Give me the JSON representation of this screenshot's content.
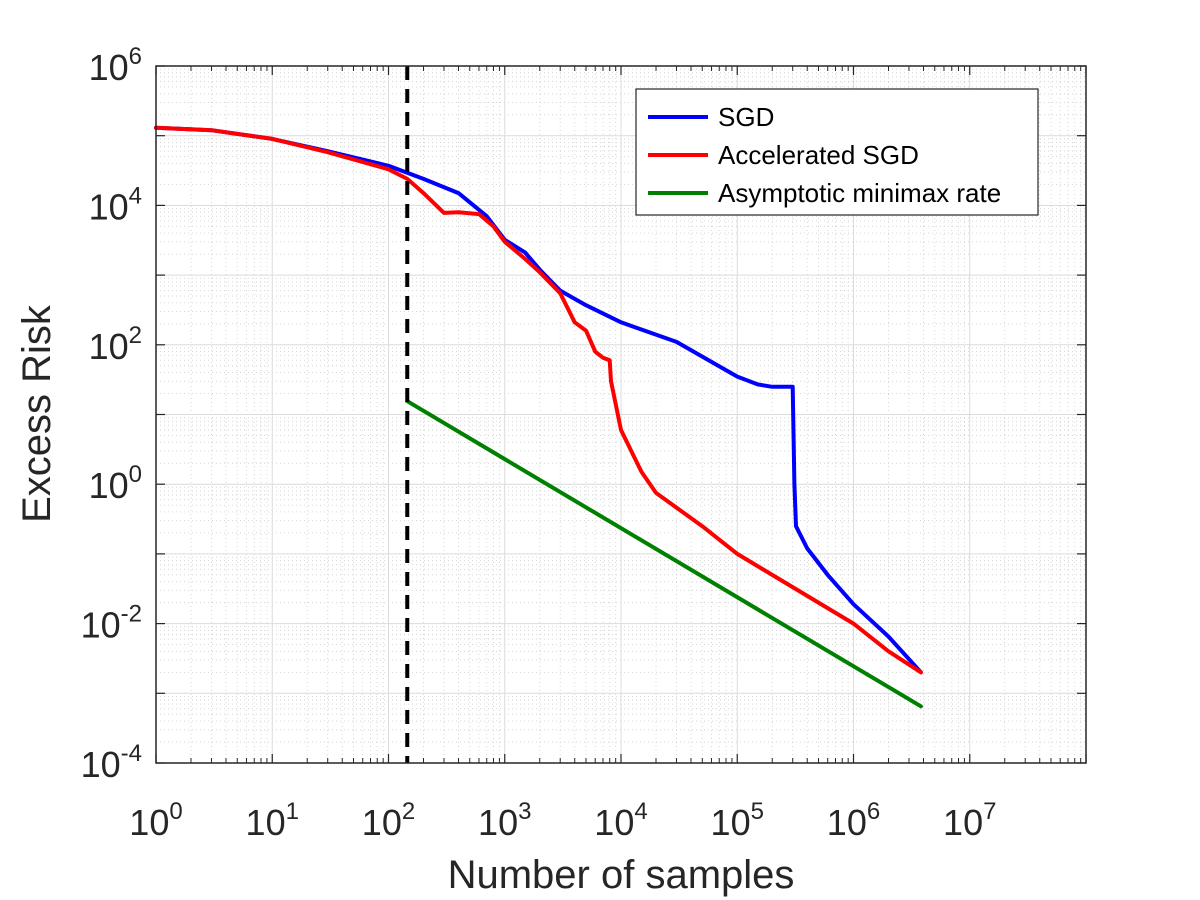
{
  "chart_data": {
    "type": "line",
    "title": "",
    "xlabel": "Number of samples",
    "ylabel": "Excess Risk",
    "xscale": "log",
    "yscale": "log",
    "xlim": [
      1,
      100000000
    ],
    "ylim": [
      0.0001,
      1000000
    ],
    "x_ticks": [
      {
        "base": "10",
        "exp": "0",
        "value": 1
      },
      {
        "base": "10",
        "exp": "1",
        "value": 10
      },
      {
        "base": "10",
        "exp": "2",
        "value": 100
      },
      {
        "base": "10",
        "exp": "3",
        "value": 1000
      },
      {
        "base": "10",
        "exp": "4",
        "value": 10000
      },
      {
        "base": "10",
        "exp": "5",
        "value": 100000
      },
      {
        "base": "10",
        "exp": "6",
        "value": 1000000
      },
      {
        "base": "10",
        "exp": "7",
        "value": 10000000
      }
    ],
    "y_ticks": [
      {
        "base": "10",
        "exp": "-4",
        "value": 0.0001
      },
      {
        "base": "10",
        "exp": "-2",
        "value": 0.01
      },
      {
        "base": "10",
        "exp": "0",
        "value": 1
      },
      {
        "base": "10",
        "exp": "2",
        "value": 100
      },
      {
        "base": "10",
        "exp": "4",
        "value": 10000
      },
      {
        "base": "10",
        "exp": "6",
        "value": 1000000
      }
    ],
    "grid": true,
    "legend_position": "top-right",
    "vertical_line": {
      "x": 145,
      "style": "dashed",
      "color": "#000000"
    },
    "series": [
      {
        "name": "SGD",
        "color": "#0000ff",
        "points": [
          [
            1,
            130000
          ],
          [
            3,
            120000
          ],
          [
            10,
            90000
          ],
          [
            30,
            60000
          ],
          [
            100,
            37000
          ],
          [
            200,
            24000
          ],
          [
            400,
            15000
          ],
          [
            700,
            7000
          ],
          [
            1000,
            3200
          ],
          [
            1500,
            2100
          ],
          [
            2000,
            1200
          ],
          [
            3000,
            600
          ],
          [
            5000,
            370
          ],
          [
            10000,
            210
          ],
          [
            30000,
            110
          ],
          [
            100000,
            35.0
          ],
          [
            150000,
            27
          ],
          [
            200000,
            25
          ],
          [
            300000,
            25
          ],
          [
            310000,
            1.0
          ],
          [
            320000,
            0.25
          ],
          [
            400000,
            0.12
          ],
          [
            600000,
            0.05
          ],
          [
            1000000,
            0.019
          ],
          [
            2000000,
            0.0065
          ],
          [
            3800000,
            0.002
          ]
        ]
      },
      {
        "name": "Accelerated SGD",
        "color": "#ff0000",
        "points": [
          [
            1,
            130000
          ],
          [
            3,
            120000
          ],
          [
            10,
            90000
          ],
          [
            30,
            58000
          ],
          [
            100,
            33000
          ],
          [
            145,
            24000
          ],
          [
            200,
            15000
          ],
          [
            300,
            7800
          ],
          [
            400,
            8000
          ],
          [
            600,
            7500
          ],
          [
            800,
            5000
          ],
          [
            1000,
            3000
          ],
          [
            1500,
            1700
          ],
          [
            2000,
            1100
          ],
          [
            3000,
            550
          ],
          [
            4000,
            210
          ],
          [
            5000,
            160
          ],
          [
            6000,
            80
          ],
          [
            7000,
            65
          ],
          [
            8000,
            60
          ],
          [
            8200,
            30
          ],
          [
            10000,
            6
          ],
          [
            15000,
            1.5
          ],
          [
            20000,
            0.75
          ],
          [
            50000,
            0.25
          ],
          [
            100000,
            0.1
          ],
          [
            200000,
            0.05
          ],
          [
            500000,
            0.02
          ],
          [
            1000000,
            0.01
          ],
          [
            2000000,
            0.004
          ],
          [
            3800000,
            0.002
          ]
        ]
      },
      {
        "name": "Asymptotic minimax rate",
        "color": "#008000",
        "points": [
          [
            145,
            15.5
          ],
          [
            3800000,
            0.00065
          ]
        ]
      }
    ]
  }
}
